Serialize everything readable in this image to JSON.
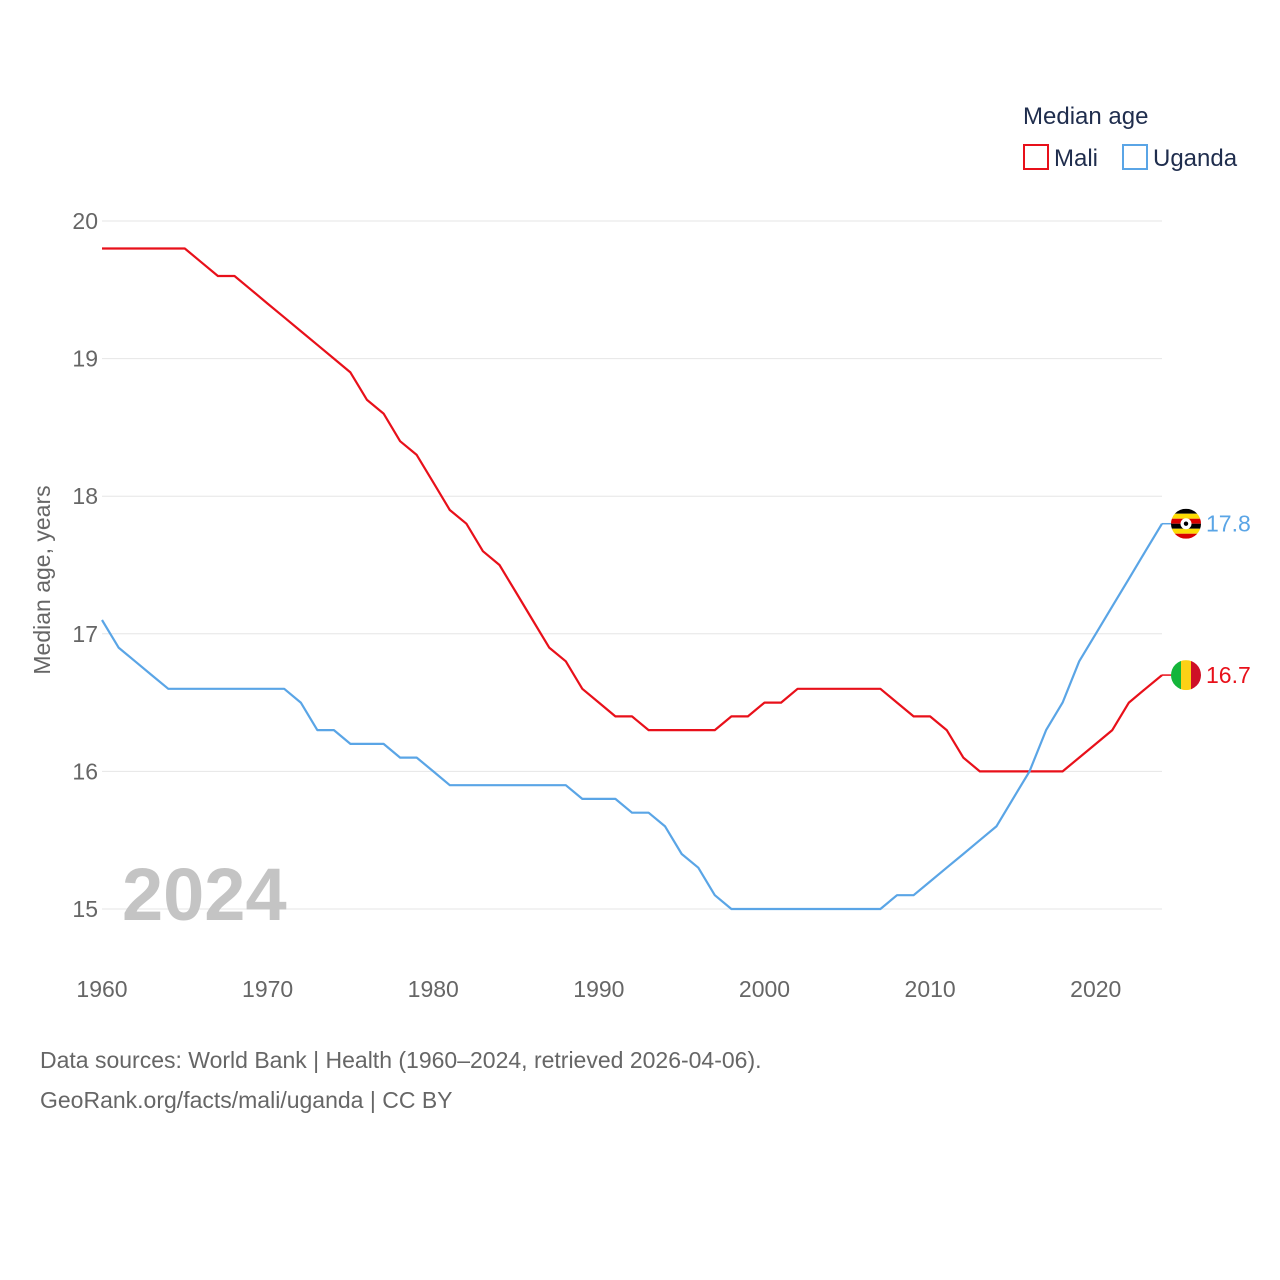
{
  "chart_data": {
    "type": "line",
    "title": "Median age",
    "ylabel": "Median age, years",
    "xlabel": "",
    "xlim": [
      1960,
      2024
    ],
    "ylim": [
      14.6,
      20.1
    ],
    "x_ticks": [
      1960,
      1970,
      1980,
      1990,
      2000,
      2010,
      2020
    ],
    "y_ticks": [
      15,
      16,
      17,
      18,
      19,
      20
    ],
    "year_watermark": "2024",
    "legend": {
      "title": "Median age",
      "position": "top-right"
    },
    "series": [
      {
        "name": "Mali",
        "color": "#e8101a",
        "flag_icon": "mali-flag-icon",
        "end_label": "16.7",
        "x": [
          1960,
          1961,
          1962,
          1963,
          1964,
          1965,
          1966,
          1967,
          1968,
          1969,
          1970,
          1971,
          1972,
          1973,
          1974,
          1975,
          1976,
          1977,
          1978,
          1979,
          1980,
          1981,
          1982,
          1983,
          1984,
          1985,
          1986,
          1987,
          1988,
          1989,
          1990,
          1991,
          1992,
          1993,
          1994,
          1995,
          1996,
          1997,
          1998,
          1999,
          2000,
          2001,
          2002,
          2003,
          2004,
          2005,
          2006,
          2007,
          2008,
          2009,
          2010,
          2011,
          2012,
          2013,
          2014,
          2015,
          2016,
          2017,
          2018,
          2019,
          2020,
          2021,
          2022,
          2023,
          2024
        ],
        "values": [
          19.8,
          19.8,
          19.8,
          19.8,
          19.8,
          19.8,
          19.7,
          19.6,
          19.6,
          19.5,
          19.4,
          19.3,
          19.2,
          19.1,
          19.0,
          18.9,
          18.7,
          18.6,
          18.4,
          18.3,
          18.1,
          17.9,
          17.8,
          17.6,
          17.5,
          17.3,
          17.1,
          16.9,
          16.8,
          16.6,
          16.5,
          16.4,
          16.4,
          16.3,
          16.3,
          16.3,
          16.3,
          16.3,
          16.4,
          16.4,
          16.5,
          16.5,
          16.6,
          16.6,
          16.6,
          16.6,
          16.6,
          16.6,
          16.5,
          16.4,
          16.4,
          16.3,
          16.1,
          16.0,
          16.0,
          16.0,
          16.0,
          16.0,
          16.0,
          16.1,
          16.2,
          16.3,
          16.5,
          16.6,
          16.7
        ]
      },
      {
        "name": "Uganda",
        "color": "#5aa5e6",
        "flag_icon": "uganda-flag-icon",
        "end_label": "17.8",
        "x": [
          1960,
          1961,
          1962,
          1963,
          1964,
          1965,
          1966,
          1967,
          1968,
          1969,
          1970,
          1971,
          1972,
          1973,
          1974,
          1975,
          1976,
          1977,
          1978,
          1979,
          1980,
          1981,
          1982,
          1983,
          1984,
          1985,
          1986,
          1987,
          1988,
          1989,
          1990,
          1991,
          1992,
          1993,
          1994,
          1995,
          1996,
          1997,
          1998,
          1999,
          2000,
          2001,
          2002,
          2003,
          2004,
          2005,
          2006,
          2007,
          2008,
          2009,
          2010,
          2011,
          2012,
          2013,
          2014,
          2015,
          2016,
          2017,
          2018,
          2019,
          2020,
          2021,
          2022,
          2023,
          2024
        ],
        "values": [
          17.1,
          16.9,
          16.8,
          16.7,
          16.6,
          16.6,
          16.6,
          16.6,
          16.6,
          16.6,
          16.6,
          16.6,
          16.5,
          16.3,
          16.3,
          16.2,
          16.2,
          16.2,
          16.1,
          16.1,
          16.0,
          15.9,
          15.9,
          15.9,
          15.9,
          15.9,
          15.9,
          15.9,
          15.9,
          15.8,
          15.8,
          15.8,
          15.7,
          15.7,
          15.6,
          15.4,
          15.3,
          15.1,
          15.0,
          15.0,
          15.0,
          15.0,
          15.0,
          15.0,
          15.0,
          15.0,
          15.0,
          15.0,
          15.1,
          15.1,
          15.2,
          15.3,
          15.4,
          15.5,
          15.6,
          15.8,
          16.0,
          16.3,
          16.5,
          16.8,
          17.0,
          17.2,
          17.4,
          17.6,
          17.8
        ]
      }
    ]
  },
  "footer": {
    "source_line": "Data sources: World Bank | Health (1960–2024, retrieved 2026-04-06).",
    "url_line": "GeoRank.org/facts/mali/uganda | CC BY"
  }
}
